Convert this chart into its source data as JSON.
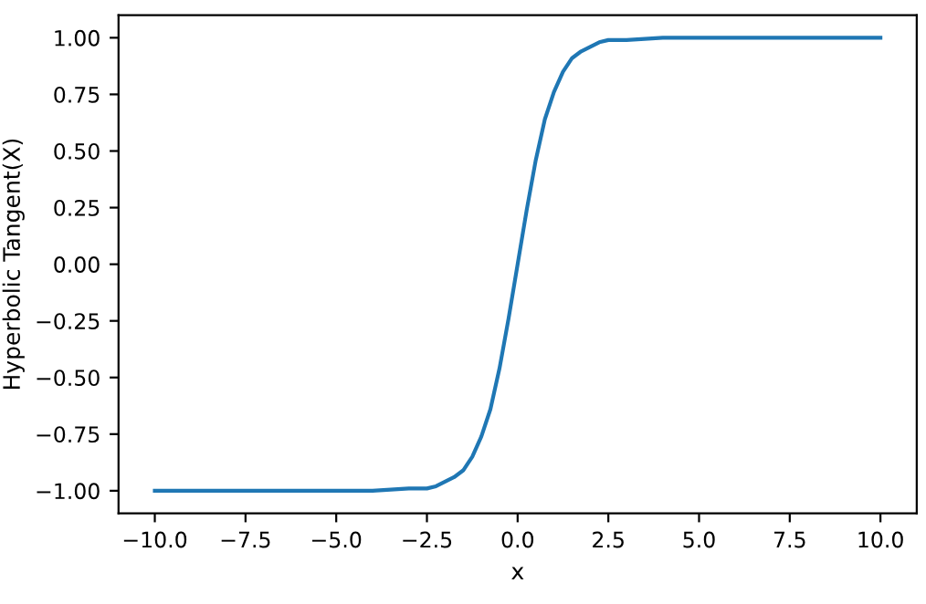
{
  "chart_data": {
    "type": "line",
    "xlabel": "x",
    "ylabel": "Hyperbolic Tangent(X)",
    "x": [
      -10,
      -8,
      -6,
      -4,
      -3,
      -2.5,
      -2.25,
      -2,
      -1.75,
      -1.5,
      -1.25,
      -1,
      -0.75,
      -0.5,
      -0.25,
      0,
      0.25,
      0.5,
      0.75,
      1,
      1.25,
      1.5,
      1.75,
      2,
      2.25,
      2.5,
      3,
      4,
      6,
      8,
      10
    ],
    "series": [
      {
        "color": "#1f77b4",
        "values": [
          -1.0,
          -1.0,
          -1.0,
          -1.0,
          -0.99,
          -0.99,
          -0.98,
          -0.96,
          -0.94,
          -0.91,
          -0.85,
          -0.76,
          -0.64,
          -0.46,
          -0.24,
          0.0,
          0.24,
          0.46,
          0.64,
          0.76,
          0.85,
          0.91,
          0.94,
          0.96,
          0.98,
          0.99,
          0.99,
          1.0,
          1.0,
          1.0,
          1.0
        ]
      }
    ],
    "xlim": [
      -11,
      11
    ],
    "ylim": [
      -1.1,
      1.1
    ],
    "xticks": [
      {
        "value": -10,
        "label": "−10.0"
      },
      {
        "value": -7.5,
        "label": "−7.5"
      },
      {
        "value": -5,
        "label": "−5.0"
      },
      {
        "value": -2.5,
        "label": "−2.5"
      },
      {
        "value": 0,
        "label": "0.0"
      },
      {
        "value": 2.5,
        "label": "2.5"
      },
      {
        "value": 5,
        "label": "5.0"
      },
      {
        "value": 7.5,
        "label": "7.5"
      },
      {
        "value": 10,
        "label": "10.0"
      }
    ],
    "yticks": [
      {
        "value": -1,
        "label": "−1.00"
      },
      {
        "value": -0.75,
        "label": "−0.75"
      },
      {
        "value": -0.5,
        "label": "−0.50"
      },
      {
        "value": -0.25,
        "label": "−0.25"
      },
      {
        "value": 0,
        "label": "0.00"
      },
      {
        "value": 0.25,
        "label": "0.25"
      },
      {
        "value": 0.5,
        "label": "0.50"
      },
      {
        "value": 0.75,
        "label": "0.75"
      },
      {
        "value": 1,
        "label": "1.00"
      }
    ],
    "grid": false,
    "legend": false,
    "marker": "none",
    "line_style": "solid"
  }
}
